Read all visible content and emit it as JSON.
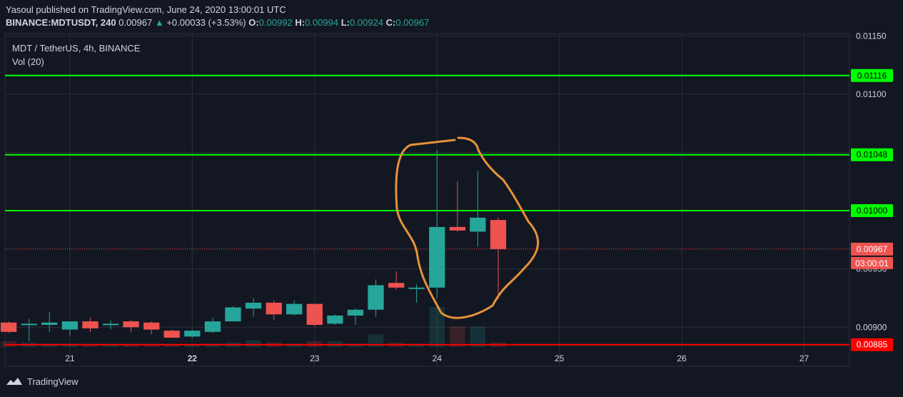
{
  "header": {
    "published_line": "Yasoul published on TradingView.com, June 24, 2020 13:00:01 UTC",
    "symbol": "BINANCE:MDTUSDT, 240",
    "last": "0.00967",
    "change_arrow": "▲",
    "change": "+0.00033 (+3.53%)",
    "o_label": "O:",
    "o_value": "0.00992",
    "h_label": "H:",
    "h_value": "0.00994",
    "l_label": "L:",
    "l_value": "0.00924",
    "c_label": "C:",
    "c_value": "0.00967"
  },
  "legend": {
    "title": "MDT / TetherUS, 4h, BINANCE",
    "indicator": "Vol (20)"
  },
  "footer": {
    "brand": "TradingView"
  },
  "colors": {
    "background": "#131722",
    "up": "#26a69a",
    "down": "#ef5350",
    "hline_green": "#00ff00",
    "hline_red": "#ff0000",
    "annotation": "#e6923a",
    "grid": "#2a2e39",
    "axis_text": "#d1d4dc"
  },
  "chart_data": {
    "type": "candlestick",
    "timeframe": "4h",
    "ylim": [
      0.00883,
      0.01152
    ],
    "xlim": [
      20.47,
      27.37
    ],
    "y_ticks": [
      {
        "value": 0.0115,
        "label": "0.01150"
      },
      {
        "value": 0.011,
        "label": "0.01100"
      },
      {
        "value": 0.0105,
        "label": "0.01050"
      },
      {
        "value": 0.01,
        "label": "0.01000"
      },
      {
        "value": 0.0095,
        "label": "0.00950"
      },
      {
        "value": 0.009,
        "label": "0.00900"
      }
    ],
    "x_ticks": [
      {
        "value": 21,
        "label": "21",
        "bold": false
      },
      {
        "value": 22,
        "label": "22",
        "bold": true
      },
      {
        "value": 23,
        "label": "23",
        "bold": false
      },
      {
        "value": 24,
        "label": "24",
        "bold": false
      },
      {
        "value": 25,
        "label": "25",
        "bold": false
      },
      {
        "value": 26,
        "label": "26",
        "bold": false
      },
      {
        "value": 27,
        "label": "27",
        "bold": false
      }
    ],
    "candles": [
      {
        "t": 20.5,
        "o": 0.00904,
        "h": 0.00905,
        "l": 0.00895,
        "c": 0.00896
      },
      {
        "t": 20.667,
        "o": 0.00902,
        "h": 0.00907,
        "l": 0.00888,
        "c": 0.00903
      },
      {
        "t": 20.833,
        "o": 0.00902,
        "h": 0.00913,
        "l": 0.00896,
        "c": 0.00904
      },
      {
        "t": 21.0,
        "o": 0.00898,
        "h": 0.00905,
        "l": 0.00893,
        "c": 0.00905
      },
      {
        "t": 21.167,
        "o": 0.00905,
        "h": 0.00908,
        "l": 0.00896,
        "c": 0.00899
      },
      {
        "t": 21.333,
        "o": 0.00902,
        "h": 0.00906,
        "l": 0.00898,
        "c": 0.00903
      },
      {
        "t": 21.5,
        "o": 0.00905,
        "h": 0.00906,
        "l": 0.00896,
        "c": 0.009
      },
      {
        "t": 21.667,
        "o": 0.00904,
        "h": 0.00905,
        "l": 0.00894,
        "c": 0.00898
      },
      {
        "t": 21.833,
        "o": 0.00897,
        "h": 0.00898,
        "l": 0.00891,
        "c": 0.00891
      },
      {
        "t": 22.0,
        "o": 0.00892,
        "h": 0.00898,
        "l": 0.00891,
        "c": 0.00897
      },
      {
        "t": 22.167,
        "o": 0.00896,
        "h": 0.00908,
        "l": 0.00895,
        "c": 0.00905
      },
      {
        "t": 22.333,
        "o": 0.00905,
        "h": 0.00918,
        "l": 0.00905,
        "c": 0.00917
      },
      {
        "t": 22.5,
        "o": 0.00916,
        "h": 0.00925,
        "l": 0.00909,
        "c": 0.00921
      },
      {
        "t": 22.667,
        "o": 0.00921,
        "h": 0.00923,
        "l": 0.00906,
        "c": 0.00911
      },
      {
        "t": 22.833,
        "o": 0.00911,
        "h": 0.00923,
        "l": 0.0091,
        "c": 0.0092
      },
      {
        "t": 23.0,
        "o": 0.0092,
        "h": 0.0092,
        "l": 0.00901,
        "c": 0.00902
      },
      {
        "t": 23.167,
        "o": 0.00903,
        "h": 0.00911,
        "l": 0.00902,
        "c": 0.0091
      },
      {
        "t": 23.333,
        "o": 0.0091,
        "h": 0.00916,
        "l": 0.00902,
        "c": 0.00915
      },
      {
        "t": 23.5,
        "o": 0.00915,
        "h": 0.00941,
        "l": 0.00909,
        "c": 0.00936
      },
      {
        "t": 23.667,
        "o": 0.00938,
        "h": 0.00948,
        "l": 0.00932,
        "c": 0.00934
      },
      {
        "t": 23.833,
        "o": 0.00933,
        "h": 0.00937,
        "l": 0.00921,
        "c": 0.00934
      },
      {
        "t": 24.0,
        "o": 0.00934,
        "h": 0.01052,
        "l": 0.00925,
        "c": 0.00986
      },
      {
        "t": 24.167,
        "o": 0.00986,
        "h": 0.01025,
        "l": 0.00982,
        "c": 0.00983
      },
      {
        "t": 24.333,
        "o": 0.00982,
        "h": 0.01034,
        "l": 0.00969,
        "c": 0.00994
      },
      {
        "t": 24.5,
        "o": 0.00992,
        "h": 0.00994,
        "l": 0.00924,
        "c": 0.00967
      }
    ],
    "volume": [
      {
        "t": 20.5,
        "v": 0.5,
        "up": false
      },
      {
        "t": 20.667,
        "v": 0.4,
        "up": true
      },
      {
        "t": 20.833,
        "v": 0.3,
        "up": true
      },
      {
        "t": 21.0,
        "v": 0.3,
        "up": true
      },
      {
        "t": 21.167,
        "v": 0.25,
        "up": false
      },
      {
        "t": 21.333,
        "v": 0.2,
        "up": true
      },
      {
        "t": 21.5,
        "v": 0.2,
        "up": false
      },
      {
        "t": 21.667,
        "v": 0.2,
        "up": false
      },
      {
        "t": 21.833,
        "v": 0.2,
        "up": false
      },
      {
        "t": 22.0,
        "v": 0.2,
        "up": true
      },
      {
        "t": 22.167,
        "v": 0.3,
        "up": true
      },
      {
        "t": 22.333,
        "v": 0.4,
        "up": true
      },
      {
        "t": 22.5,
        "v": 0.6,
        "up": true
      },
      {
        "t": 22.667,
        "v": 0.4,
        "up": false
      },
      {
        "t": 22.833,
        "v": 0.3,
        "up": true
      },
      {
        "t": 23.0,
        "v": 0.5,
        "up": false
      },
      {
        "t": 23.167,
        "v": 0.5,
        "up": true
      },
      {
        "t": 23.333,
        "v": 0.3,
        "up": true
      },
      {
        "t": 23.5,
        "v": 1.1,
        "up": true
      },
      {
        "t": 23.667,
        "v": 0.4,
        "up": false
      },
      {
        "t": 23.833,
        "v": 0.3,
        "up": true
      },
      {
        "t": 24.0,
        "v": 3.5,
        "up": true
      },
      {
        "t": 24.167,
        "v": 1.8,
        "up": false
      },
      {
        "t": 24.333,
        "v": 1.8,
        "up": true
      },
      {
        "t": 24.5,
        "v": 0.4,
        "up": false
      }
    ],
    "horizontal_lines": [
      {
        "price": 0.01116,
        "label": "0.01116",
        "color": "green"
      },
      {
        "price": 0.01048,
        "label": "0.01048",
        "color": "green"
      },
      {
        "price": 0.01,
        "label": "0.01000",
        "color": "green"
      },
      {
        "price": 0.00885,
        "label": "0.00885",
        "color": "red"
      }
    ],
    "last_price": {
      "price": 0.00967,
      "label": "0.00967",
      "countdown": "03:00:01"
    },
    "annotation": {
      "type": "hand-drawn ellipse",
      "around": "June 24 candles"
    },
    "grid": true,
    "legend_position": "top-left"
  }
}
